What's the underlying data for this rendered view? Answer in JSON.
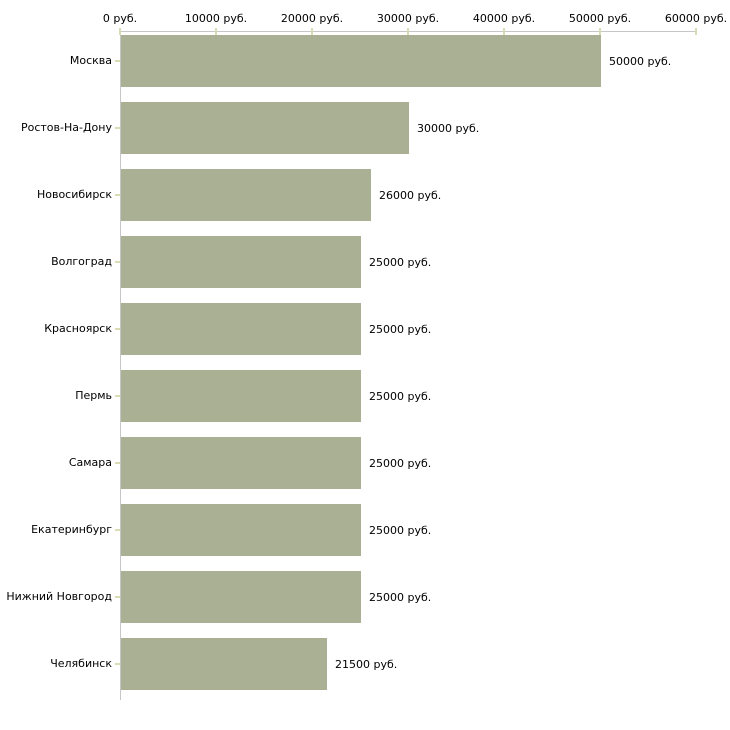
{
  "chart_data": {
    "type": "bar",
    "orientation": "horizontal",
    "title": "",
    "unit": "руб.",
    "categories": [
      "Москва",
      "Ростов-На-Дону",
      "Новосибирск",
      "Волгоград",
      "Красноярск",
      "Пермь",
      "Самара",
      "Екатеринбург",
      "Нижний Новгород",
      "Челябинск"
    ],
    "values": [
      50000,
      30000,
      26000,
      25000,
      25000,
      25000,
      25000,
      25000,
      25000,
      21500
    ],
    "value_labels": [
      "50000 руб.",
      "30000 руб.",
      "26000 руб.",
      "25000 руб.",
      "25000 руб.",
      "25000 руб.",
      "25000 руб.",
      "25000 руб.",
      "25000 руб.",
      "21500 руб."
    ],
    "x_axis": {
      "position": "top",
      "min": 0,
      "max": 60000,
      "ticks": [
        0,
        10000,
        20000,
        30000,
        40000,
        50000,
        60000
      ],
      "tick_labels": [
        "0 руб.",
        "10000 руб.",
        "20000 руб.",
        "30000 руб.",
        "40000 руб.",
        "50000 руб.",
        "60000 руб."
      ]
    },
    "grid": false,
    "legend": false,
    "colors": {
      "bar": "#a9b094",
      "axis_line": "#c6c6c6",
      "tick_mark": "#d9dcb4",
      "text": "#000000",
      "background": "#ffffff"
    }
  }
}
